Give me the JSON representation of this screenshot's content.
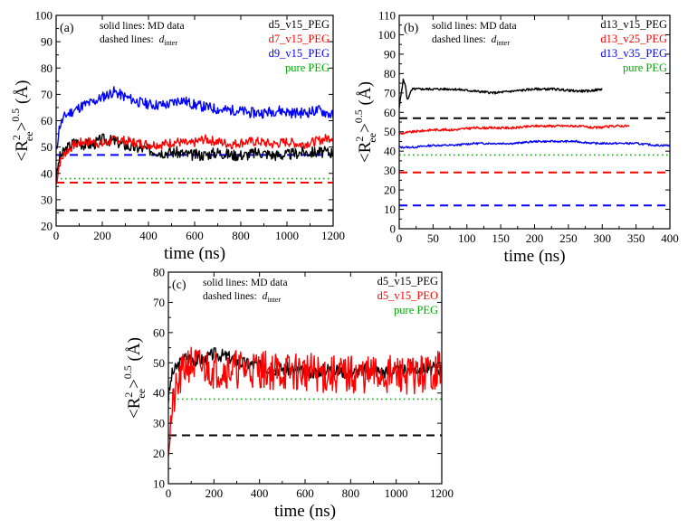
{
  "chart_data": [
    {
      "type": "line",
      "panel_label": "(a)",
      "xlabel": "time (ns)",
      "ylabel_text": "<R",
      "ylabel_sup": "2",
      "ylabel_sub": "ee",
      "ylabel_close": ">",
      "ylabel_exp": "0.5",
      "ylabel_unit": " (Å)",
      "xlim": [
        0,
        1200
      ],
      "ylim": [
        20,
        100
      ],
      "xticks": [
        0,
        200,
        400,
        600,
        800,
        1000,
        1200
      ],
      "yticks": [
        20,
        30,
        40,
        50,
        60,
        70,
        80,
        90,
        100
      ],
      "note_line1": "solid lines: MD data",
      "note_line2_prefix": "dashed lines: ",
      "note_line2_var": "d",
      "note_line2_sub": "inter",
      "series": [
        {
          "name": "d5_v15_PEG",
          "color": "#000000",
          "noise": 2.2,
          "seed": 3,
          "x": [
            0,
            15,
            40,
            80,
            120,
            160,
            200,
            260,
            320,
            400,
            460,
            520,
            580,
            640,
            700,
            760,
            820,
            880,
            940,
            1000,
            1060,
            1120,
            1200
          ],
          "values": [
            38,
            46,
            49,
            52,
            51,
            51,
            53,
            52,
            50,
            49,
            48,
            48,
            47,
            47,
            48,
            47,
            47,
            48,
            47,
            47,
            48,
            48,
            48
          ]
        },
        {
          "name": "d7_v15_PEG",
          "color": "#ff0000",
          "noise": 1.8,
          "seed": 7,
          "x": [
            0,
            15,
            40,
            80,
            120,
            160,
            200,
            260,
            320,
            400,
            460,
            520,
            580,
            640,
            700,
            760,
            820,
            880,
            940,
            1000,
            1060,
            1120,
            1200
          ],
          "values": [
            36,
            44,
            48,
            51,
            52,
            52,
            51,
            53,
            52,
            51,
            51,
            52,
            51,
            53,
            52,
            51,
            52,
            52,
            51,
            52,
            51,
            52,
            54
          ]
        },
        {
          "name": "d9_v15_PEG",
          "color": "#0000ff",
          "noise": 2.0,
          "seed": 11,
          "x": [
            0,
            15,
            40,
            80,
            120,
            160,
            200,
            250,
            300,
            360,
            420,
            480,
            540,
            600,
            660,
            720,
            780,
            840,
            900,
            960,
            1020,
            1080,
            1140,
            1200
          ],
          "values": [
            48,
            58,
            62,
            64,
            66,
            67,
            69,
            71,
            69,
            67,
            66,
            66,
            68,
            66,
            65,
            64,
            64,
            63,
            63,
            64,
            63,
            63,
            64,
            62
          ]
        }
      ],
      "hlines": [
        {
          "name": "d5_v15_PEG",
          "y": 26,
          "color": "#000000",
          "style": "dashed"
        },
        {
          "name": "d7_v15_PEG",
          "y": 36.5,
          "color": "#ff0000",
          "style": "dashed"
        },
        {
          "name": "d9_v15_PEG",
          "y": 47,
          "color": "#0000ff",
          "style": "dashed"
        },
        {
          "name": "pure PEG",
          "y": 38,
          "color": "#00aa00",
          "style": "dotted"
        }
      ],
      "legend": [
        {
          "label": "d5_v15_PEG",
          "color": "#000000"
        },
        {
          "label": "d7_v15_PEG",
          "color": "#ff0000"
        },
        {
          "label": "d9_v15_PEG",
          "color": "#0000ff"
        },
        {
          "label": "pure PEG",
          "color": "#00aa00"
        }
      ]
    },
    {
      "type": "line",
      "panel_label": "(b)",
      "xlabel": "time (ns)",
      "ylabel_text": "<R",
      "ylabel_sup": "2",
      "ylabel_sub": "ee",
      "ylabel_close": ">",
      "ylabel_exp": "0.5",
      "ylabel_unit": " (Å)",
      "xlim": [
        0,
        400
      ],
      "ylim": [
        0,
        110
      ],
      "xticks": [
        0,
        50,
        100,
        150,
        200,
        250,
        300,
        350,
        400
      ],
      "yticks": [
        0,
        10,
        20,
        30,
        40,
        50,
        60,
        70,
        80,
        90,
        100,
        110
      ],
      "note_line1": "solid lines: MD data",
      "note_line2_prefix": "dashed lines: ",
      "note_line2_var": "d",
      "note_line2_sub": "inter",
      "series": [
        {
          "name": "d13_v15_PEG",
          "color": "#000000",
          "noise": 0.6,
          "seed": 5,
          "x": [
            0,
            3,
            6,
            9,
            12,
            16,
            20,
            30,
            50,
            80,
            110,
            140,
            170,
            200,
            230,
            260,
            280,
            300
          ],
          "values": [
            62,
            70,
            77,
            74,
            66,
            70,
            72,
            72,
            72,
            72,
            71,
            70,
            71,
            72,
            72,
            71,
            71,
            72
          ]
        },
        {
          "name": "d13_v25_PEG",
          "color": "#ff0000",
          "noise": 0.6,
          "seed": 9,
          "x": [
            0,
            20,
            50,
            80,
            110,
            140,
            170,
            200,
            230,
            260,
            290,
            320,
            340
          ],
          "values": [
            49,
            50,
            51,
            51,
            52,
            52,
            52,
            53,
            53,
            53,
            52,
            53,
            53
          ]
        },
        {
          "name": "d13_v35_PEG",
          "color": "#0000ff",
          "noise": 0.5,
          "seed": 13,
          "x": [
            0,
            20,
            50,
            80,
            110,
            140,
            170,
            200,
            230,
            260,
            290,
            320,
            350,
            380,
            400
          ],
          "values": [
            42,
            42,
            43,
            43,
            44,
            44,
            44,
            45,
            45,
            45,
            44,
            44,
            44,
            43,
            43
          ]
        }
      ],
      "hlines": [
        {
          "name": "d13_v15_PEG",
          "y": 57,
          "color": "#000000",
          "style": "dashed"
        },
        {
          "name": "d13_v25_PEG",
          "y": 29,
          "color": "#ff0000",
          "style": "dashed"
        },
        {
          "name": "d13_v35_PEG",
          "y": 12,
          "color": "#0000ff",
          "style": "dashed"
        },
        {
          "name": "pure PEG",
          "y": 38,
          "color": "#00aa00",
          "style": "dotted"
        }
      ],
      "legend": [
        {
          "label": "d13_v15_PEG",
          "color": "#000000"
        },
        {
          "label": "d13_v25_PEG",
          "color": "#ff0000"
        },
        {
          "label": "d13_v35_PEG",
          "color": "#0000ff"
        },
        {
          "label": "pure PEG",
          "color": "#00aa00"
        }
      ]
    },
    {
      "type": "line",
      "panel_label": "(c)",
      "xlabel": "time (ns)",
      "ylabel_text": "<R",
      "ylabel_sup": "2",
      "ylabel_sub": "ee",
      "ylabel_close": ">",
      "ylabel_exp": "0.5",
      "ylabel_unit": " (Å)",
      "xlim": [
        0,
        1200
      ],
      "ylim": [
        10,
        80
      ],
      "xticks": [
        0,
        200,
        400,
        600,
        800,
        1000,
        1200
      ],
      "yticks": [
        10,
        20,
        30,
        40,
        50,
        60,
        70,
        80
      ],
      "note_line1": "solid lines: MD data",
      "note_line2_prefix": "dashed lines: ",
      "note_line2_var": "d",
      "note_line2_sub": "inter",
      "series": [
        {
          "name": "d5_v15_PEG",
          "color": "#000000",
          "noise": 2.2,
          "seed": 3,
          "x": [
            0,
            15,
            40,
            80,
            120,
            160,
            200,
            260,
            320,
            400,
            460,
            520,
            580,
            640,
            700,
            760,
            820,
            880,
            940,
            1000,
            1060,
            1120,
            1200
          ],
          "values": [
            38,
            46,
            49,
            52,
            51,
            51,
            53,
            52,
            50,
            49,
            48,
            48,
            47,
            47,
            48,
            47,
            47,
            48,
            47,
            47,
            48,
            48,
            48
          ]
        },
        {
          "name": "d5_v15_PEO",
          "color": "#ff0000",
          "noise": 6.5,
          "seed": 21,
          "x": [
            0,
            10,
            25,
            50,
            80,
            120,
            200,
            300,
            400,
            500,
            600,
            700,
            800,
            900,
            1000,
            1100,
            1200
          ],
          "values": [
            22,
            30,
            38,
            44,
            50,
            49,
            48,
            48,
            48,
            47,
            47,
            46,
            46,
            46,
            46,
            46,
            48
          ]
        }
      ],
      "hlines": [
        {
          "name": "d5_v15_PEG",
          "y": 26,
          "color": "#000000",
          "style": "dashed"
        },
        {
          "name": "pure PEG",
          "y": 38,
          "color": "#00aa00",
          "style": "dotted"
        }
      ],
      "legend": [
        {
          "label": "d5_v15_PEG",
          "color": "#000000"
        },
        {
          "label": "d5_v15_PEO",
          "color": "#ff0000"
        },
        {
          "label": "pure PEG",
          "color": "#00aa00"
        }
      ]
    }
  ]
}
